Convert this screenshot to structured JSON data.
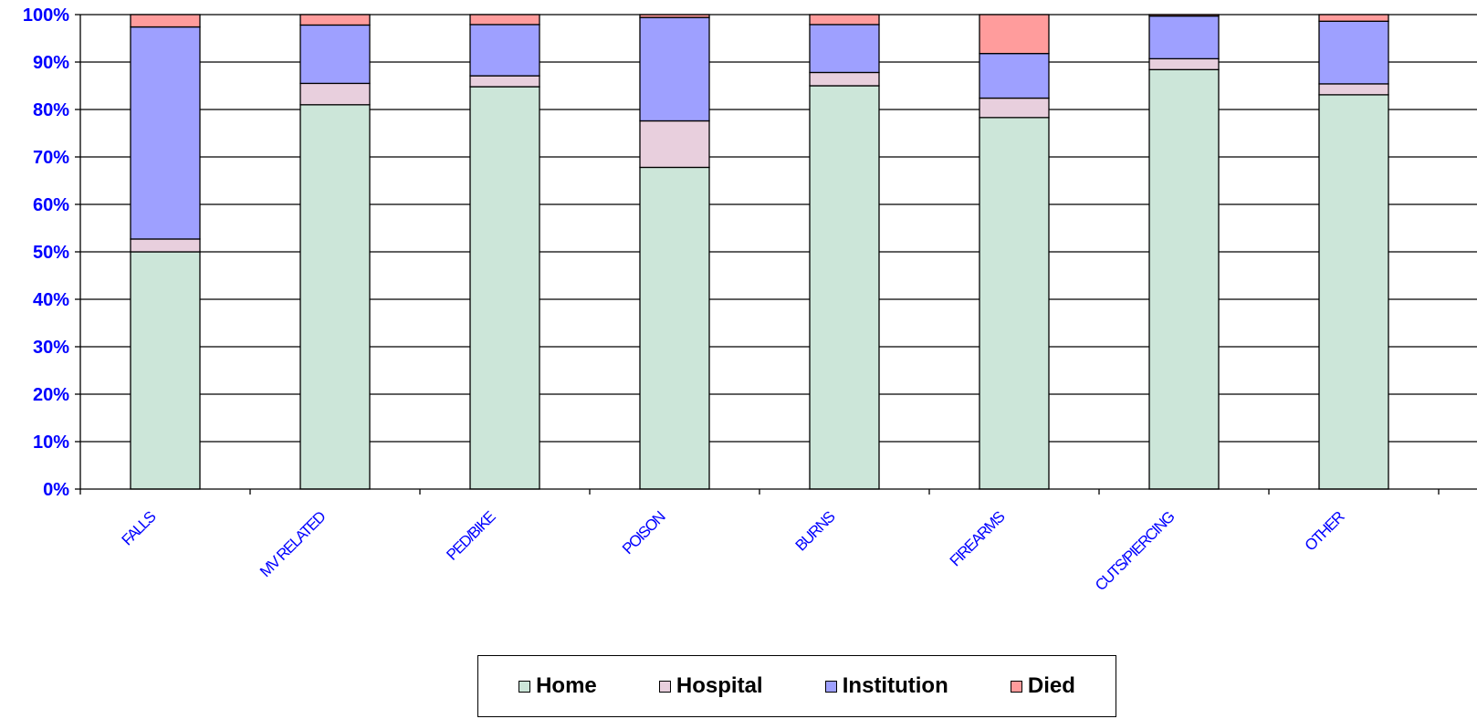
{
  "chart_data": {
    "type": "bar",
    "stacked": true,
    "percent_stacked": true,
    "categories": [
      "FALLS",
      "MV RELATED",
      "PED/BIKE",
      "POISON",
      "BURNS",
      "FIREARMS",
      "CUTS/PIERCING",
      "OTHER"
    ],
    "series": [
      {
        "name": "Home",
        "color": "#cce6d9",
        "values": [
          50.0,
          81.0,
          84.8,
          67.8,
          85.0,
          78.3,
          88.4,
          83.1
        ]
      },
      {
        "name": "Hospital",
        "color": "#e8cfdd",
        "values": [
          2.7,
          4.5,
          2.3,
          9.8,
          2.8,
          4.1,
          2.3,
          2.3
        ]
      },
      {
        "name": "Institution",
        "color": "#9ea0ff",
        "values": [
          44.7,
          12.3,
          10.8,
          21.8,
          10.1,
          9.4,
          9.0,
          13.2
        ]
      },
      {
        "name": "Died",
        "color": "#ff9c9c",
        "values": [
          2.6,
          2.2,
          2.1,
          0.6,
          2.1,
          8.2,
          0.3,
          1.4
        ]
      }
    ],
    "yticks": [
      "0%",
      "10%",
      "20%",
      "30%",
      "40%",
      "50%",
      "60%",
      "70%",
      "80%",
      "90%",
      "100%"
    ],
    "ylim": [
      0,
      100
    ],
    "title": "",
    "xlabel": "",
    "ylabel": "",
    "grid": true,
    "legend_position": "bottom"
  }
}
